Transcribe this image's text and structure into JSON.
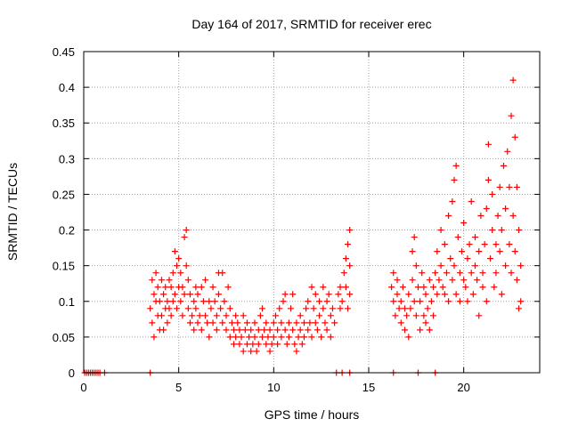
{
  "chart_data": {
    "type": "scatter",
    "title": "Day 164 of 2017, SRMTID for receiver erec",
    "xlabel": "GPS time / hours",
    "ylabel": "SRMTID / TECUs",
    "xlim": [
      0,
      24
    ],
    "ylim": [
      0,
      0.45
    ],
    "grid": true,
    "marker": "+",
    "marker_color": "#ff0000",
    "x_ticks": [
      0,
      5,
      10,
      15,
      20
    ],
    "x_tick_labels": [
      "0",
      "5",
      "10",
      "15",
      "20"
    ],
    "y_ticks": [
      0,
      0.05,
      0.1,
      0.15,
      0.2,
      0.25,
      0.3,
      0.35,
      0.4,
      0.45
    ],
    "y_tick_labels": [
      "0",
      "0.05",
      "0.1",
      "0.15",
      "0.2",
      "0.25",
      "0.3",
      "0.35",
      "0.4",
      "0.45"
    ],
    "zero_points_x": [
      0.05,
      0.15,
      0.25,
      0.35,
      0.45,
      0.55,
      0.65,
      0.75,
      0.85,
      1.1,
      3.5,
      13.3,
      13.6,
      14.0,
      16.3,
      17.6,
      18.5
    ],
    "series": [
      {
        "name": "SRMTID",
        "points": [
          [
            3.5,
            0.09
          ],
          [
            3.6,
            0.13
          ],
          [
            3.6,
            0.07
          ],
          [
            3.7,
            0.11
          ],
          [
            3.7,
            0.05
          ],
          [
            3.8,
            0.1
          ],
          [
            3.8,
            0.14
          ],
          [
            3.9,
            0.08
          ],
          [
            3.9,
            0.12
          ],
          [
            4.0,
            0.06
          ],
          [
            4.0,
            0.1
          ],
          [
            4.1,
            0.13
          ],
          [
            4.1,
            0.08
          ],
          [
            4.2,
            0.11
          ],
          [
            4.2,
            0.06
          ],
          [
            4.3,
            0.09
          ],
          [
            4.3,
            0.12
          ],
          [
            4.4,
            0.07
          ],
          [
            4.4,
            0.1
          ],
          [
            4.5,
            0.13
          ],
          [
            4.5,
            0.09
          ],
          [
            4.6,
            0.08
          ],
          [
            4.6,
            0.12
          ],
          [
            4.7,
            0.1
          ],
          [
            4.7,
            0.14
          ],
          [
            4.8,
            0.11
          ],
          [
            4.8,
            0.17
          ],
          [
            4.9,
            0.09
          ],
          [
            4.9,
            0.15
          ],
          [
            5.0,
            0.12
          ],
          [
            5.0,
            0.16
          ],
          [
            5.1,
            0.1
          ],
          [
            5.1,
            0.14
          ],
          [
            5.2,
            0.08
          ],
          [
            5.2,
            0.12
          ],
          [
            5.3,
            0.19
          ],
          [
            5.3,
            0.11
          ],
          [
            5.4,
            0.2
          ],
          [
            5.4,
            0.15
          ],
          [
            5.5,
            0.09
          ],
          [
            5.5,
            0.13
          ],
          [
            5.6,
            0.07
          ],
          [
            5.6,
            0.11
          ],
          [
            5.7,
            0.08
          ],
          [
            5.8,
            0.1
          ],
          [
            5.8,
            0.06
          ],
          [
            5.9,
            0.12
          ],
          [
            5.9,
            0.09
          ],
          [
            6.0,
            0.07
          ],
          [
            6.0,
            0.11
          ],
          [
            6.1,
            0.08
          ],
          [
            6.2,
            0.12
          ],
          [
            6.2,
            0.06
          ],
          [
            6.3,
            0.1
          ],
          [
            6.4,
            0.08
          ],
          [
            6.4,
            0.13
          ],
          [
            6.5,
            0.07
          ],
          [
            6.6,
            0.1
          ],
          [
            6.6,
            0.05
          ],
          [
            6.7,
            0.09
          ],
          [
            6.8,
            0.12
          ],
          [
            6.8,
            0.07
          ],
          [
            6.9,
            0.1
          ],
          [
            7.0,
            0.06
          ],
          [
            7.0,
            0.08
          ],
          [
            7.1,
            0.11
          ],
          [
            7.1,
            0.14
          ],
          [
            7.2,
            0.09
          ],
          [
            7.3,
            0.07
          ],
          [
            7.3,
            0.14
          ],
          [
            7.4,
            0.1
          ],
          [
            7.5,
            0.06
          ],
          [
            7.5,
            0.08
          ],
          [
            7.6,
            0.12
          ],
          [
            7.7,
            0.05
          ],
          [
            7.7,
            0.09
          ],
          [
            7.8,
            0.07
          ],
          [
            7.9,
            0.04
          ],
          [
            7.9,
            0.06
          ],
          [
            8.0,
            0.08
          ],
          [
            8.0,
            0.05
          ],
          [
            8.1,
            0.07
          ],
          [
            8.2,
            0.04
          ],
          [
            8.2,
            0.06
          ],
          [
            8.3,
            0.05
          ],
          [
            8.4,
            0.08
          ],
          [
            8.4,
            0.03
          ],
          [
            8.5,
            0.06
          ],
          [
            8.6,
            0.04
          ],
          [
            8.6,
            0.07
          ],
          [
            8.7,
            0.05
          ],
          [
            8.8,
            0.03
          ],
          [
            8.8,
            0.06
          ],
          [
            8.9,
            0.04
          ],
          [
            9.0,
            0.07
          ],
          [
            9.0,
            0.05
          ],
          [
            9.1,
            0.03
          ],
          [
            9.2,
            0.06
          ],
          [
            9.2,
            0.04
          ],
          [
            9.3,
            0.08
          ],
          [
            9.4,
            0.05
          ],
          [
            9.4,
            0.09
          ],
          [
            9.5,
            0.06
          ],
          [
            9.6,
            0.04
          ],
          [
            9.6,
            0.07
          ],
          [
            9.7,
            0.05
          ],
          [
            9.8,
            0.03
          ],
          [
            9.8,
            0.06
          ],
          [
            9.9,
            0.04
          ],
          [
            10.0,
            0.07
          ],
          [
            10.0,
            0.05
          ],
          [
            10.1,
            0.08
          ],
          [
            10.2,
            0.04
          ],
          [
            10.2,
            0.06
          ],
          [
            10.3,
            0.09
          ],
          [
            10.4,
            0.05
          ],
          [
            10.4,
            0.07
          ],
          [
            10.5,
            0.1
          ],
          [
            10.6,
            0.06
          ],
          [
            10.6,
            0.11
          ],
          [
            10.7,
            0.04
          ],
          [
            10.8,
            0.07
          ],
          [
            10.8,
            0.05
          ],
          [
            10.9,
            0.09
          ],
          [
            11.0,
            0.06
          ],
          [
            11.0,
            0.11
          ],
          [
            11.1,
            0.04
          ],
          [
            11.2,
            0.07
          ],
          [
            11.2,
            0.03
          ],
          [
            11.3,
            0.05
          ],
          [
            11.4,
            0.08
          ],
          [
            11.4,
            0.06
          ],
          [
            11.5,
            0.04
          ],
          [
            11.6,
            0.07
          ],
          [
            11.6,
            0.05
          ],
          [
            11.7,
            0.09
          ],
          [
            11.8,
            0.06
          ],
          [
            11.8,
            0.1
          ],
          [
            11.9,
            0.07
          ],
          [
            12.0,
            0.12
          ],
          [
            12.0,
            0.05
          ],
          [
            12.1,
            0.09
          ],
          [
            12.2,
            0.11
          ],
          [
            12.2,
            0.07
          ],
          [
            12.3,
            0.06
          ],
          [
            12.4,
            0.1
          ],
          [
            12.4,
            0.08
          ],
          [
            12.5,
            0.05
          ],
          [
            12.6,
            0.09
          ],
          [
            12.6,
            0.12
          ],
          [
            12.7,
            0.07
          ],
          [
            12.8,
            0.1
          ],
          [
            12.8,
            0.06
          ],
          [
            12.9,
            0.11
          ],
          [
            13.0,
            0.08
          ],
          [
            13.0,
            0.05
          ],
          [
            13.1,
            0.09
          ],
          [
            13.2,
            0.07
          ],
          [
            13.4,
            0.11
          ],
          [
            13.5,
            0.09
          ],
          [
            13.5,
            0.12
          ],
          [
            13.6,
            0.1
          ],
          [
            13.7,
            0.14
          ],
          [
            13.8,
            0.12
          ],
          [
            13.8,
            0.16
          ],
          [
            13.9,
            0.18
          ],
          [
            14.0,
            0.2
          ],
          [
            14.0,
            0.15
          ],
          [
            14.0,
            0.11
          ],
          [
            13.9,
            0.09
          ],
          [
            16.2,
            0.12
          ],
          [
            16.3,
            0.1
          ],
          [
            16.3,
            0.14
          ],
          [
            16.4,
            0.08
          ],
          [
            16.5,
            0.11
          ],
          [
            16.5,
            0.13
          ],
          [
            16.6,
            0.09
          ],
          [
            16.7,
            0.07
          ],
          [
            16.7,
            0.1
          ],
          [
            16.8,
            0.12
          ],
          [
            16.9,
            0.06
          ],
          [
            16.9,
            0.09
          ],
          [
            17.0,
            0.08
          ],
          [
            17.1,
            0.11
          ],
          [
            17.1,
            0.05
          ],
          [
            17.2,
            0.09
          ],
          [
            17.3,
            0.13
          ],
          [
            17.3,
            0.17
          ],
          [
            17.4,
            0.1
          ],
          [
            17.4,
            0.19
          ],
          [
            17.5,
            0.15
          ],
          [
            17.5,
            0.08
          ],
          [
            17.6,
            0.12
          ],
          [
            17.7,
            0.06
          ],
          [
            17.7,
            0.1
          ],
          [
            17.8,
            0.14
          ],
          [
            17.9,
            0.08
          ],
          [
            17.9,
            0.12
          ],
          [
            18.0,
            0.07
          ],
          [
            18.0,
            0.11
          ],
          [
            18.1,
            0.09
          ],
          [
            18.2,
            0.13
          ],
          [
            18.2,
            0.06
          ],
          [
            18.3,
            0.1
          ],
          [
            18.4,
            0.12
          ],
          [
            18.4,
            0.08
          ],
          [
            18.5,
            0.14
          ],
          [
            18.6,
            0.11
          ],
          [
            18.6,
            0.17
          ],
          [
            18.7,
            0.13
          ],
          [
            18.8,
            0.2
          ],
          [
            18.8,
            0.15
          ],
          [
            18.9,
            0.12
          ],
          [
            19.0,
            0.18
          ],
          [
            19.0,
            0.11
          ],
          [
            19.1,
            0.14
          ],
          [
            19.2,
            0.1
          ],
          [
            19.2,
            0.22
          ],
          [
            19.3,
            0.16
          ],
          [
            19.4,
            0.13
          ],
          [
            19.4,
            0.24
          ],
          [
            19.5,
            0.27
          ],
          [
            19.5,
            0.15
          ],
          [
            19.6,
            0.11
          ],
          [
            19.6,
            0.29
          ],
          [
            19.7,
            0.19
          ],
          [
            19.8,
            0.14
          ],
          [
            19.8,
            0.1
          ],
          [
            19.9,
            0.17
          ],
          [
            20.0,
            0.13
          ],
          [
            20.0,
            0.21
          ],
          [
            20.1,
            0.12
          ],
          [
            20.2,
            0.16
          ],
          [
            20.2,
            0.1
          ],
          [
            20.3,
            0.18
          ],
          [
            20.4,
            0.14
          ],
          [
            20.4,
            0.24
          ],
          [
            20.5,
            0.11
          ],
          [
            20.6,
            0.15
          ],
          [
            20.6,
            0.19
          ],
          [
            20.7,
            0.13
          ],
          [
            20.8,
            0.08
          ],
          [
            20.8,
            0.17
          ],
          [
            20.9,
            0.22
          ],
          [
            21.0,
            0.14
          ],
          [
            21.0,
            0.12
          ],
          [
            21.1,
            0.18
          ],
          [
            21.2,
            0.23
          ],
          [
            21.2,
            0.1
          ],
          [
            21.3,
            0.27
          ],
          [
            21.3,
            0.32
          ],
          [
            21.4,
            0.16
          ],
          [
            21.5,
            0.2
          ],
          [
            21.5,
            0.25
          ],
          [
            21.6,
            0.12
          ],
          [
            21.7,
            0.18
          ],
          [
            21.7,
            0.14
          ],
          [
            21.8,
            0.22
          ],
          [
            21.9,
            0.17
          ],
          [
            21.9,
            0.26
          ],
          [
            22.0,
            0.11
          ],
          [
            22.0,
            0.2
          ],
          [
            22.1,
            0.29
          ],
          [
            22.2,
            0.15
          ],
          [
            22.2,
            0.23
          ],
          [
            22.3,
            0.31
          ],
          [
            22.4,
            0.18
          ],
          [
            22.4,
            0.26
          ],
          [
            22.5,
            0.36
          ],
          [
            22.5,
            0.14
          ],
          [
            22.6,
            0.41
          ],
          [
            22.6,
            0.22
          ],
          [
            22.7,
            0.33
          ],
          [
            22.7,
            0.17
          ],
          [
            22.8,
            0.26
          ],
          [
            22.8,
            0.13
          ],
          [
            22.9,
            0.2
          ],
          [
            22.9,
            0.09
          ],
          [
            23.0,
            0.15
          ],
          [
            23.0,
            0.1
          ]
        ]
      }
    ]
  }
}
